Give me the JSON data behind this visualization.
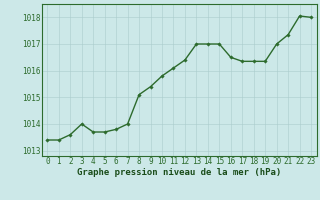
{
  "x": [
    0,
    1,
    2,
    3,
    4,
    5,
    6,
    7,
    8,
    9,
    10,
    11,
    12,
    13,
    14,
    15,
    16,
    17,
    18,
    19,
    20,
    21,
    22,
    23
  ],
  "y": [
    1013.4,
    1013.4,
    1013.6,
    1014.0,
    1013.7,
    1013.7,
    1013.8,
    1014.0,
    1015.1,
    1015.4,
    1015.8,
    1016.1,
    1016.4,
    1017.0,
    1017.0,
    1017.0,
    1016.5,
    1016.35,
    1016.35,
    1016.35,
    1017.0,
    1017.35,
    1018.05,
    1018.0
  ],
  "line_color": "#2d6b2d",
  "marker": "D",
  "marker_size": 1.8,
  "bg_color": "#cce8e8",
  "grid_color": "#aacccc",
  "xlabel": "Graphe pression niveau de la mer (hPa)",
  "xlabel_color": "#1a4d1a",
  "xlabel_fontsize": 6.5,
  "tick_color": "#2d6b2d",
  "tick_fontsize": 5.5,
  "ylim": [
    1012.8,
    1018.5
  ],
  "xlim": [
    -0.5,
    23.5
  ],
  "yticks": [
    1013,
    1014,
    1015,
    1016,
    1017,
    1018
  ],
  "xticks": [
    0,
    1,
    2,
    3,
    4,
    5,
    6,
    7,
    8,
    9,
    10,
    11,
    12,
    13,
    14,
    15,
    16,
    17,
    18,
    19,
    20,
    21,
    22,
    23
  ],
  "line_width": 1.0,
  "spine_color": "#2d6b2d"
}
